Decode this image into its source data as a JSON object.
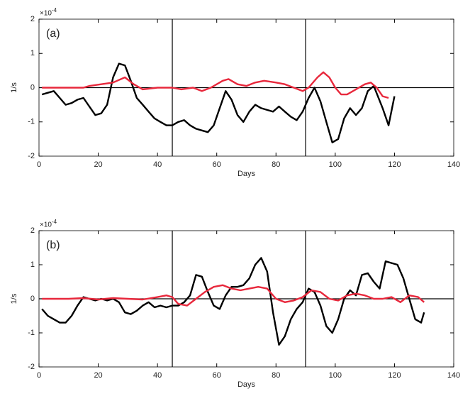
{
  "chart_data": [
    {
      "type": "line",
      "panel_label": "(a)",
      "x_label": "Days",
      "y_label": "1/s",
      "multiplier": "×10",
      "exponent": "-4",
      "xlim": [
        0,
        140
      ],
      "xticks": [
        0,
        20,
        40,
        60,
        80,
        100,
        120,
        140
      ],
      "ylim": [
        -2,
        2
      ],
      "yticks": [
        -2,
        -1,
        0,
        1,
        2
      ],
      "vlines": [
        45,
        90
      ],
      "hline": 0,
      "series": [
        {
          "color": "#000000",
          "x": [
            1,
            3,
            5,
            7,
            9,
            11,
            13,
            15,
            17,
            19,
            21,
            23,
            25,
            27,
            29,
            31,
            33,
            35,
            37,
            39,
            41,
            43,
            45,
            47,
            49,
            51,
            53,
            55,
            57,
            59,
            61,
            63,
            65,
            67,
            69,
            71,
            73,
            75,
            77,
            79,
            81,
            83,
            85,
            87,
            89,
            91,
            93,
            95,
            97,
            99,
            101,
            103,
            105,
            107,
            109,
            111,
            113,
            116,
            118,
            120
          ],
          "values": [
            -0.2,
            -0.15,
            -0.1,
            -0.3,
            -0.5,
            -0.45,
            -0.35,
            -0.3,
            -0.55,
            -0.8,
            -0.75,
            -0.5,
            0.3,
            0.7,
            0.65,
            0.2,
            -0.3,
            -0.5,
            -0.7,
            -0.9,
            -1.0,
            -1.1,
            -1.1,
            -1.0,
            -0.95,
            -1.1,
            -1.2,
            -1.25,
            -1.3,
            -1.1,
            -0.6,
            -0.1,
            -0.35,
            -0.8,
            -1.0,
            -0.7,
            -0.5,
            -0.6,
            -0.65,
            -0.7,
            -0.55,
            -0.7,
            -0.85,
            -0.95,
            -0.7,
            -0.3,
            0.0,
            -0.4,
            -1.0,
            -1.6,
            -1.5,
            -0.9,
            -0.6,
            -0.8,
            -0.6,
            -0.1,
            0.05,
            -0.6,
            -1.1,
            -0.25
          ]
        },
        {
          "color": "#e8283c",
          "x": [
            1,
            5,
            10,
            15,
            17,
            21,
            25,
            29,
            32,
            35,
            40,
            45,
            48,
            52,
            55,
            58,
            62,
            64,
            67,
            70,
            73,
            76,
            80,
            83,
            86,
            89,
            91,
            94,
            96,
            98,
            100,
            102,
            104,
            107,
            110,
            112,
            114,
            116,
            118
          ],
          "values": [
            0,
            0,
            0,
            0,
            0.05,
            0.1,
            0.15,
            0.3,
            0.1,
            -0.05,
            0,
            0,
            -0.05,
            0,
            -0.1,
            0,
            0.2,
            0.25,
            0.1,
            0.05,
            0.15,
            0.2,
            0.15,
            0.1,
            0,
            -0.1,
            0,
            0.3,
            0.45,
            0.3,
            0,
            -0.2,
            -0.2,
            -0.05,
            0.1,
            0.15,
            0,
            -0.25,
            -0.3
          ]
        }
      ]
    },
    {
      "type": "line",
      "panel_label": "(b)",
      "x_label": "Days",
      "y_label": "1/s",
      "multiplier": "×10",
      "exponent": "-4",
      "xlim": [
        0,
        140
      ],
      "xticks": [
        0,
        20,
        40,
        60,
        80,
        100,
        120,
        140
      ],
      "ylim": [
        -2,
        2
      ],
      "yticks": [
        -2,
        -1,
        0,
        1,
        2
      ],
      "vlines": [
        45,
        90
      ],
      "hline": 0,
      "series": [
        {
          "color": "#000000",
          "x": [
            1,
            3,
            5,
            7,
            9,
            11,
            13,
            15,
            17,
            19,
            21,
            23,
            25,
            27,
            29,
            31,
            33,
            35,
            37,
            39,
            41,
            43,
            45,
            47,
            49,
            51,
            53,
            55,
            57,
            59,
            61,
            63,
            65,
            67,
            69,
            71,
            73,
            75,
            77,
            79,
            81,
            83,
            85,
            87,
            89,
            91,
            93,
            95,
            97,
            99,
            101,
            103,
            105,
            107,
            109,
            111,
            113,
            115,
            117,
            119,
            121,
            123,
            125,
            127,
            129,
            130
          ],
          "values": [
            -0.3,
            -0.5,
            -0.6,
            -0.7,
            -0.7,
            -0.5,
            -0.2,
            0.05,
            0,
            -0.05,
            0,
            -0.05,
            0,
            -0.1,
            -0.4,
            -0.45,
            -0.35,
            -0.2,
            -0.1,
            -0.25,
            -0.2,
            -0.25,
            -0.2,
            -0.2,
            -0.1,
            0.1,
            0.7,
            0.65,
            0.2,
            -0.2,
            -0.3,
            0.1,
            0.35,
            0.35,
            0.4,
            0.6,
            1.0,
            1.2,
            0.8,
            -0.4,
            -1.35,
            -1.1,
            -0.6,
            -0.3,
            -0.1,
            0.3,
            0.2,
            -0.2,
            -0.8,
            -1.0,
            -0.6,
            0,
            0.25,
            0.1,
            0.7,
            0.75,
            0.5,
            0.3,
            1.1,
            1.05,
            1.0,
            0.6,
            0,
            -0.6,
            -0.7,
            -0.4
          ]
        },
        {
          "color": "#e8283c",
          "x": [
            1,
            5,
            10,
            15,
            20,
            25,
            30,
            35,
            40,
            43,
            45,
            47,
            50,
            53,
            56,
            59,
            62,
            65,
            68,
            71,
            74,
            77,
            80,
            83,
            86,
            89,
            92,
            95,
            98,
            101,
            104,
            107,
            110,
            113,
            116,
            119,
            122,
            125,
            128,
            130
          ],
          "values": [
            0,
            0,
            0,
            0.02,
            -0.02,
            0.02,
            0,
            -0.02,
            0.05,
            0.1,
            0.05,
            -0.15,
            -0.2,
            0,
            0.2,
            0.35,
            0.4,
            0.3,
            0.25,
            0.3,
            0.35,
            0.3,
            0,
            -0.1,
            -0.05,
            0.05,
            0.25,
            0.2,
            0,
            -0.05,
            0.1,
            0.15,
            0.1,
            0,
            0,
            0.05,
            -0.1,
            0.1,
            0.05,
            -0.1
          ]
        }
      ]
    }
  ]
}
